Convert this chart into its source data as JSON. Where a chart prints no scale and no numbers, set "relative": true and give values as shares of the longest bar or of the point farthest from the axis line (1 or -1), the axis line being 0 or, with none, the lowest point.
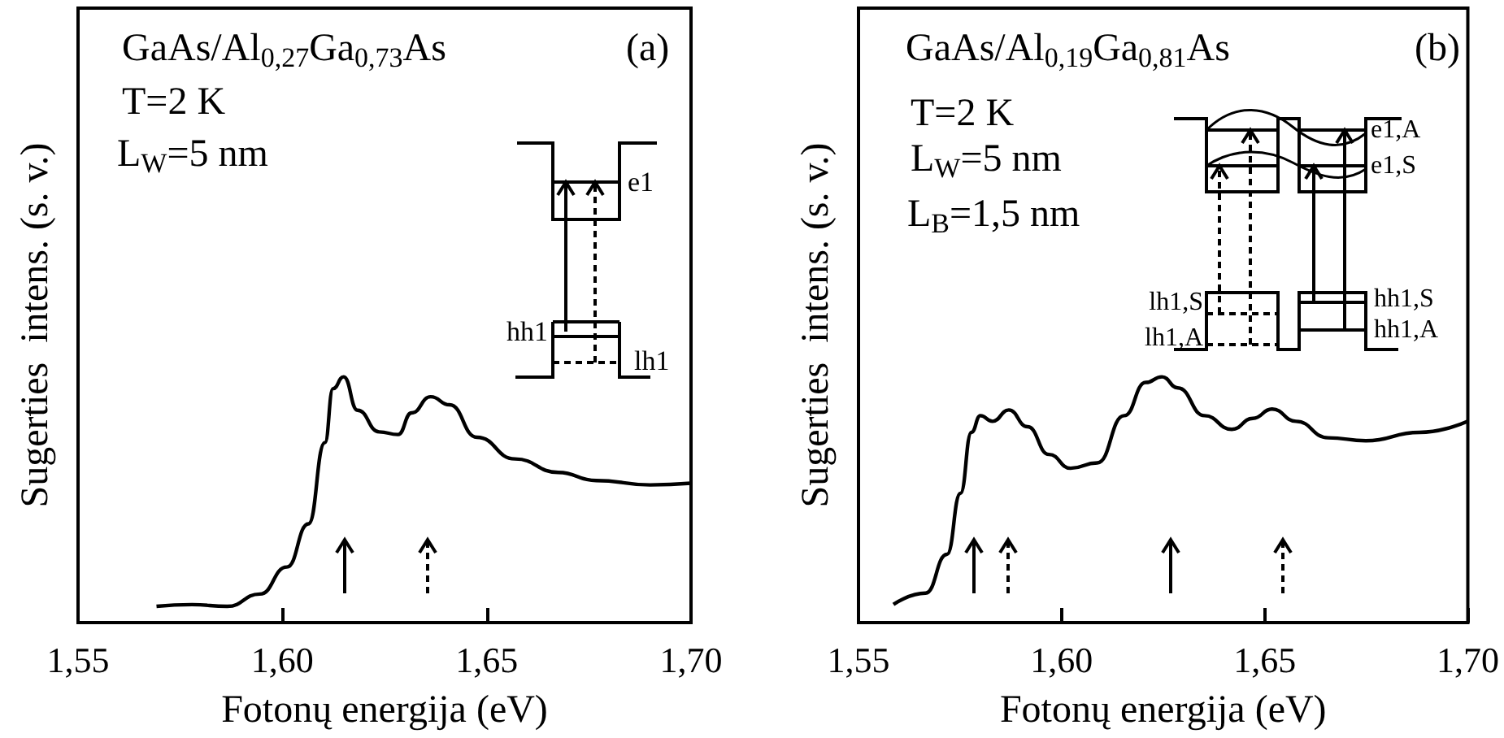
{
  "chart_data": [
    {
      "type": "line",
      "relative": true,
      "xlabel": "Fotonų energija (eV)",
      "ylabel": "Sugerties  intens. (s. v.)",
      "annotations": [
        "GaAs/Al$_{0,27}$Ga$_{0,73}$As",
        "T=2 K",
        "L$_{W}$=5 nm",
        "(a)",
        "e1",
        "hh1",
        "lh1"
      ],
      "xlim": [
        1.55,
        1.7
      ],
      "xticks": [
        {
          "value": 1.55,
          "label": "1,55"
        },
        {
          "value": 1.6,
          "label": "1,60"
        },
        {
          "value": 1.65,
          "label": "1,65"
        },
        {
          "value": 1.7,
          "label": "1,70"
        }
      ],
      "x": [
        1.5692,
        1.5779,
        1.5865,
        1.5945,
        1.6011,
        1.6064,
        1.6104,
        1.6124,
        1.615,
        1.6184,
        1.6237,
        1.6283,
        1.6316,
        1.6363,
        1.6409,
        1.6476,
        1.6569,
        1.6675,
        1.6768,
        1.69,
        1.7
      ],
      "series": [
        {
          "color": "#000000",
          "values": [
            0.066,
            0.073,
            0.066,
            0.116,
            0.226,
            0.402,
            0.732,
            0.952,
            1.0,
            0.864,
            0.776,
            0.765,
            0.853,
            0.919,
            0.886,
            0.754,
            0.666,
            0.611,
            0.578,
            0.56,
            0.567
          ]
        }
      ]
    },
    {
      "type": "line",
      "relative": true,
      "xlabel": "Fotonų energija (eV)",
      "ylabel": "Sugerties  intens. (s. v.)",
      "annotations": [
        "GaAs/Al$_{0,19}$Ga$_{0,81}$As",
        "T=2 K",
        "L$_{W}$=5 nm",
        "L$_{B}$=1,5 nm",
        "(b)",
        "e1,A",
        "e1,S",
        "lh1,S",
        "lh1,A",
        "hh1,S",
        "hh1,A"
      ],
      "xlim": [
        1.55,
        1.7
      ],
      "xticks": [
        {
          "value": 1.55,
          "label": "1,55"
        },
        {
          "value": 1.6,
          "label": "1,60"
        },
        {
          "value": 1.65,
          "label": "1,65"
        },
        {
          "value": 1.7,
          "label": "1,70"
        }
      ],
      "x": [
        1.5586,
        1.5665,
        1.5718,
        1.5751,
        1.5778,
        1.58,
        1.583,
        1.587,
        1.5916,
        1.5969,
        1.6022,
        1.6088,
        1.6154,
        1.6207,
        1.6247,
        1.6286,
        1.6352,
        1.6419,
        1.6471,
        1.6518,
        1.6577,
        1.6656,
        1.6749,
        1.6881,
        1.7
      ],
      "series": [
        {
          "color": "#000000",
          "values": [
            0.074,
            0.12,
            0.278,
            0.526,
            0.774,
            0.842,
            0.819,
            0.865,
            0.797,
            0.684,
            0.628,
            0.65,
            0.842,
            0.977,
            1.0,
            0.955,
            0.842,
            0.786,
            0.831,
            0.869,
            0.819,
            0.752,
            0.74,
            0.774,
            0.819
          ]
        }
      ]
    }
  ]
}
